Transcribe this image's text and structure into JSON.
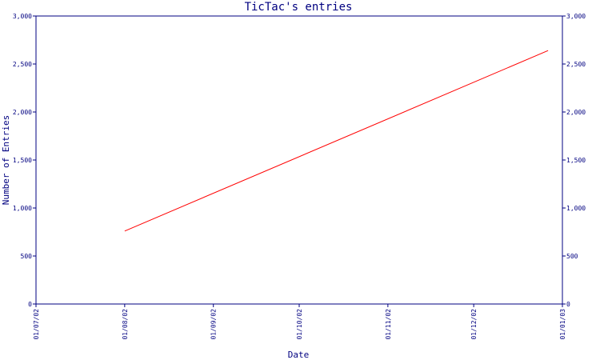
{
  "chart_data": {
    "type": "line",
    "title": "TicTac's entries",
    "xlabel": "Date",
    "ylabel": "Number of Entries",
    "x_tick_labels": [
      "01/07/02",
      "01/08/02",
      "01/09/02",
      "01/10/02",
      "01/11/02",
      "01/12/02",
      "01/01/03"
    ],
    "y_tick_labels": [
      "0",
      "500",
      "1,000",
      "1,500",
      "2,000",
      "2,500",
      "3,000"
    ],
    "y_tick_values": [
      0,
      500,
      1000,
      1500,
      2000,
      2500,
      3000
    ],
    "xlim": [
      "2002-07-01",
      "2003-01-01"
    ],
    "ylim": [
      0,
      3000
    ],
    "grid": false,
    "series": [
      {
        "color": "#ff0000",
        "points": [
          {
            "x": "2002-08-01",
            "y": 760
          },
          {
            "x": "2002-12-27",
            "y": 2640
          }
        ]
      }
    ]
  }
}
